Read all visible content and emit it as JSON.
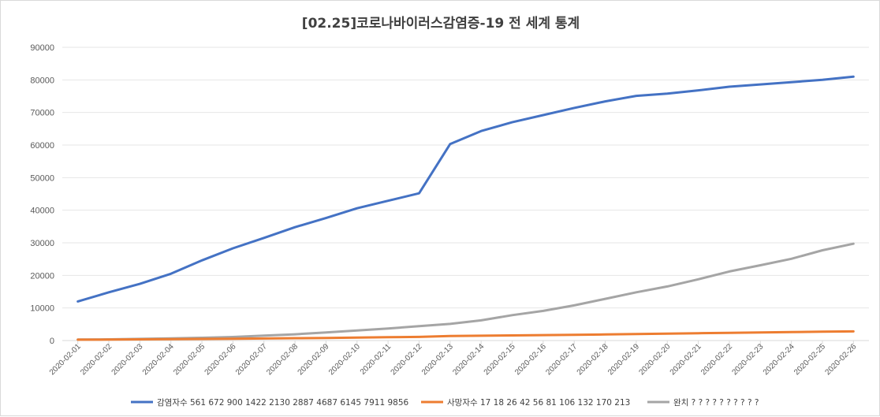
{
  "chart_data": {
    "type": "line",
    "title": "[02.25]코로나바이러스감염증-19 전 세계 통계",
    "xlabel": "",
    "ylabel": "",
    "ylim": [
      0,
      90000
    ],
    "yticks": [
      "0",
      "10000",
      "20000",
      "30000",
      "40000",
      "50000",
      "60000",
      "70000",
      "80000",
      "90000"
    ],
    "grid": true,
    "legend_position": "bottom",
    "x": [
      "2020-02-01",
      "2020-02-02",
      "2020-02-03",
      "2020-02-04",
      "2020-02-05",
      "2020-02-06",
      "2020-02-07",
      "2020-02-08",
      "2020-02-09",
      "2020-02-10",
      "2020-02-11",
      "2020-02-12",
      "2020-02-13",
      "2020-02-14",
      "2020-02-15",
      "2020-02-16",
      "2020-02-17",
      "2020-02-18",
      "2020-02-19",
      "2020-02-20",
      "2020-02-21",
      "2020-02-22",
      "2020-02-23",
      "2020-02-24",
      "2020-02-25",
      "2020-02-26"
    ],
    "series": [
      {
        "name": "감염자수 561 672 900 1422 2130 2887 4687 6145 7911 9856",
        "color": "#4472c4",
        "values": [
          12000,
          14800,
          17400,
          20500,
          24600,
          28300,
          31500,
          34800,
          37600,
          40600,
          42900,
          45200,
          60300,
          64300,
          67000,
          69200,
          71400,
          73400,
          75100,
          75800,
          76800,
          77900,
          78600,
          79300,
          80000,
          81000
        ]
      },
      {
        "name": "사망자수 17 18 26 42 56 81 106 132 170 213",
        "color": "#ed7d31",
        "values": [
          260,
          300,
          360,
          420,
          490,
          560,
          640,
          720,
          810,
          910,
          1020,
          1120,
          1370,
          1480,
          1580,
          1670,
          1770,
          1870,
          2010,
          2120,
          2240,
          2360,
          2460,
          2600,
          2700,
          2800
        ]
      },
      {
        "name": "완치 ? ? ? ? ? ? ? ? ? ?",
        "color": "#a5a5a5",
        "values": [
          280,
          360,
          500,
          650,
          850,
          1100,
          1500,
          1900,
          2500,
          3100,
          3700,
          4400,
          5100,
          6200,
          7800,
          9100,
          10800,
          12800,
          14800,
          16600,
          18800,
          21200,
          23100,
          25100,
          27700,
          29700
        ]
      }
    ]
  }
}
